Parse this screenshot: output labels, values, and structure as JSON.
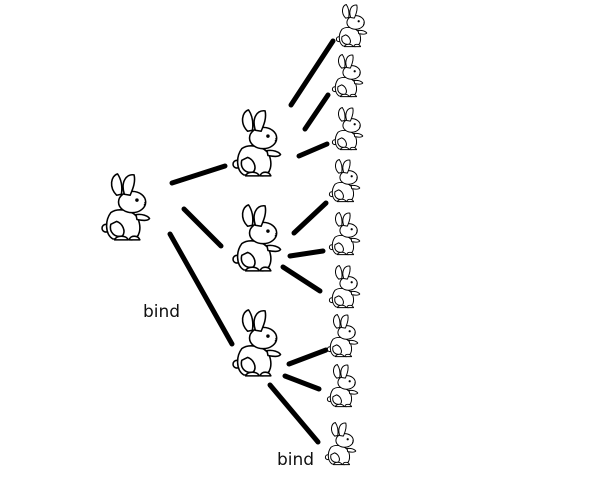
{
  "labels": {
    "edge_a": "bind",
    "edge_b": "bind"
  },
  "colors": {
    "stroke": "#000000",
    "fill": "#ffffff"
  },
  "icon": "rabbit-icon",
  "tree": {
    "root": "rabbit",
    "children": [
      {
        "node": "rabbit",
        "children": [
          "rabbit",
          "rabbit",
          "rabbit"
        ]
      },
      {
        "node": "rabbit",
        "children": [
          "rabbit",
          "rabbit",
          "rabbit"
        ]
      },
      {
        "node": "rabbit",
        "children": [
          "rabbit",
          "rabbit",
          "rabbit"
        ]
      }
    ]
  }
}
